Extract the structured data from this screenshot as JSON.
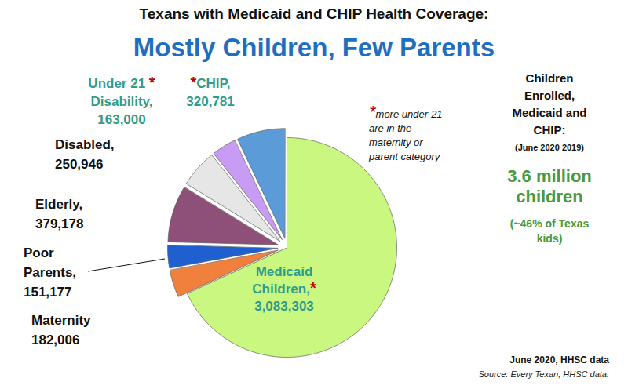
{
  "chart_data": {
    "type": "pie",
    "title": "Texans with Medicaid and CHIP Health Coverage:",
    "subtitle": "Mostly Children, Few Parents",
    "categories": [
      "Medicaid Children,*",
      "Maternity",
      "Poor Parents,",
      "Elderly,",
      "Disabled,",
      "Under 21 * Disability,",
      "*CHIP,"
    ],
    "values": [
      3083303,
      182006,
      151177,
      379178,
      250946,
      163000,
      320781
    ],
    "value_labels": [
      "3,083,303",
      "182,006",
      "151,177",
      "379,178",
      "250,946",
      "163,000",
      "320,781"
    ],
    "colors": [
      "#c9f77f",
      "#f0803c",
      "#1f5fd0",
      "#8e4f78",
      "#e6e6e6",
      "#c89bf5",
      "#5b9bd8"
    ],
    "data_labels": true,
    "annotations": [
      "*more under-21 are in the maternity or parent category",
      "Children Enrolled, Medicaid and CHIP:",
      "(June 2020 2019)",
      "3.6 million children",
      "(~46% of Texas kids)",
      "June 2020, HHSC data",
      "Source: Every Texan, HHSC data."
    ]
  }
}
